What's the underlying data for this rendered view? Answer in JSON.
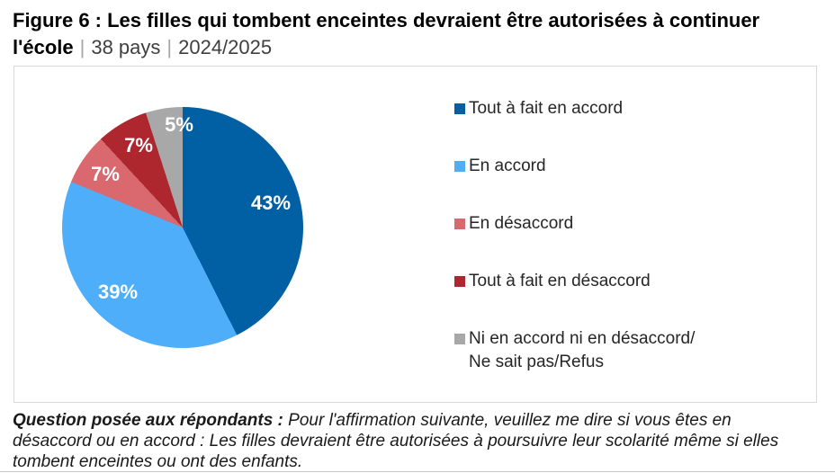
{
  "header": {
    "title_bold_line1": "Figure 6 : Les filles qui tombent enceintes devraient être autorisées à continuer",
    "title_bold_line2": "l'école",
    "separator": "|",
    "scope": "38 pays",
    "period": "2024/2025"
  },
  "chart_data": {
    "type": "pie",
    "title": "Les filles qui tombent enceintes devraient être autorisées à continuer l'école",
    "units": "%",
    "start_angle_deg": 0,
    "direction": "clockwise",
    "legend_position": "right",
    "data_label_color": "#FFFFFF",
    "slices": [
      {
        "label": "Tout à fait en accord",
        "value": 43,
        "pct": "43%",
        "color": "#0060A3"
      },
      {
        "label": "En accord",
        "value": 39,
        "pct": "39%",
        "color": "#4EAEF9"
      },
      {
        "label": "En désaccord",
        "value": 7,
        "pct": "7%",
        "color": "#D9696E"
      },
      {
        "label": "Tout à fait en désaccord",
        "value": 7,
        "pct": "7%",
        "color": "#AE262E"
      },
      {
        "label": "Ni en accord ni en désaccord/\nNe sait pas/Refus",
        "value": 5,
        "pct": "5%",
        "color": "#A8A8A8"
      }
    ]
  },
  "footer": {
    "question_label": "Question posée aux répondants :",
    "question_text": "Pour l'affirmation suivante, veuillez me dire si vous êtes en désaccord ou en accord : Les filles devraient être autorisées à poursuivre leur scolarité même si elles tombent enceintes ou ont des enfants."
  },
  "colors": {
    "frame_border": "#D9D9D9",
    "title_separator": "#A6A6A6",
    "subtitle_text": "#3F3F3F",
    "legend_text": "#262626"
  }
}
